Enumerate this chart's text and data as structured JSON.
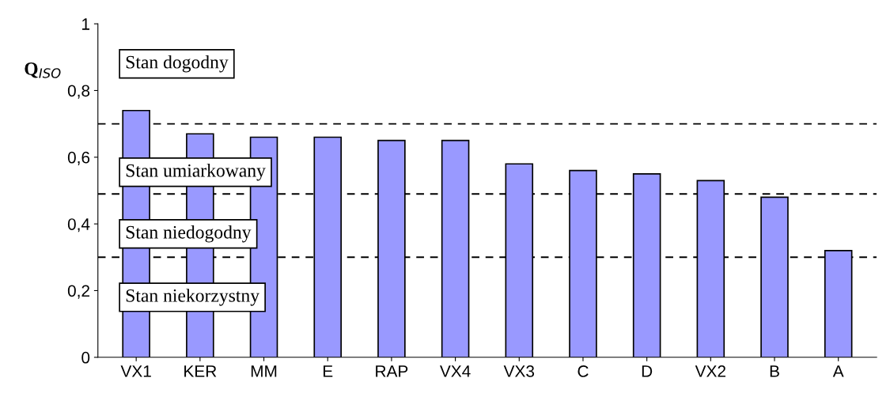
{
  "chart_data": {
    "type": "bar",
    "ylabel": "Q$_{ISO}$",
    "categories": [
      "VX1",
      "KER",
      "MM",
      "E",
      "RAP",
      "VX4",
      "VX3",
      "C",
      "D",
      "VX2",
      "B",
      "A"
    ],
    "values": [
      0.74,
      0.67,
      0.66,
      0.66,
      0.65,
      0.65,
      0.58,
      0.56,
      0.55,
      0.53,
      0.48,
      0.32
    ],
    "color": "#9999ff",
    "ylim": [
      0,
      1
    ],
    "yticks": [
      0,
      {
        "value": 0.2,
        "label": "0,2"
      },
      {
        "value": 0.4,
        "label": "0,4"
      },
      {
        "value": 0.6,
        "label": "0,6"
      },
      {
        "value": 0.8,
        "label": "0,8"
      },
      1
    ],
    "ref_lines": [
      {
        "axis": "y",
        "value": 0.7,
        "color": "#000000",
        "line_style": "dashed"
      },
      {
        "axis": "y",
        "value": 0.49,
        "color": "#000000",
        "line_style": "dashed"
      },
      {
        "axis": "y",
        "value": 0.3,
        "color": "#000000",
        "line_style": "dashed"
      }
    ],
    "annotations": [
      "Stan dogodny",
      "Stan umiarkowany",
      "Stan niedogodny",
      "Stan niekorzystny"
    ],
    "grid": false,
    "legend": false
  }
}
